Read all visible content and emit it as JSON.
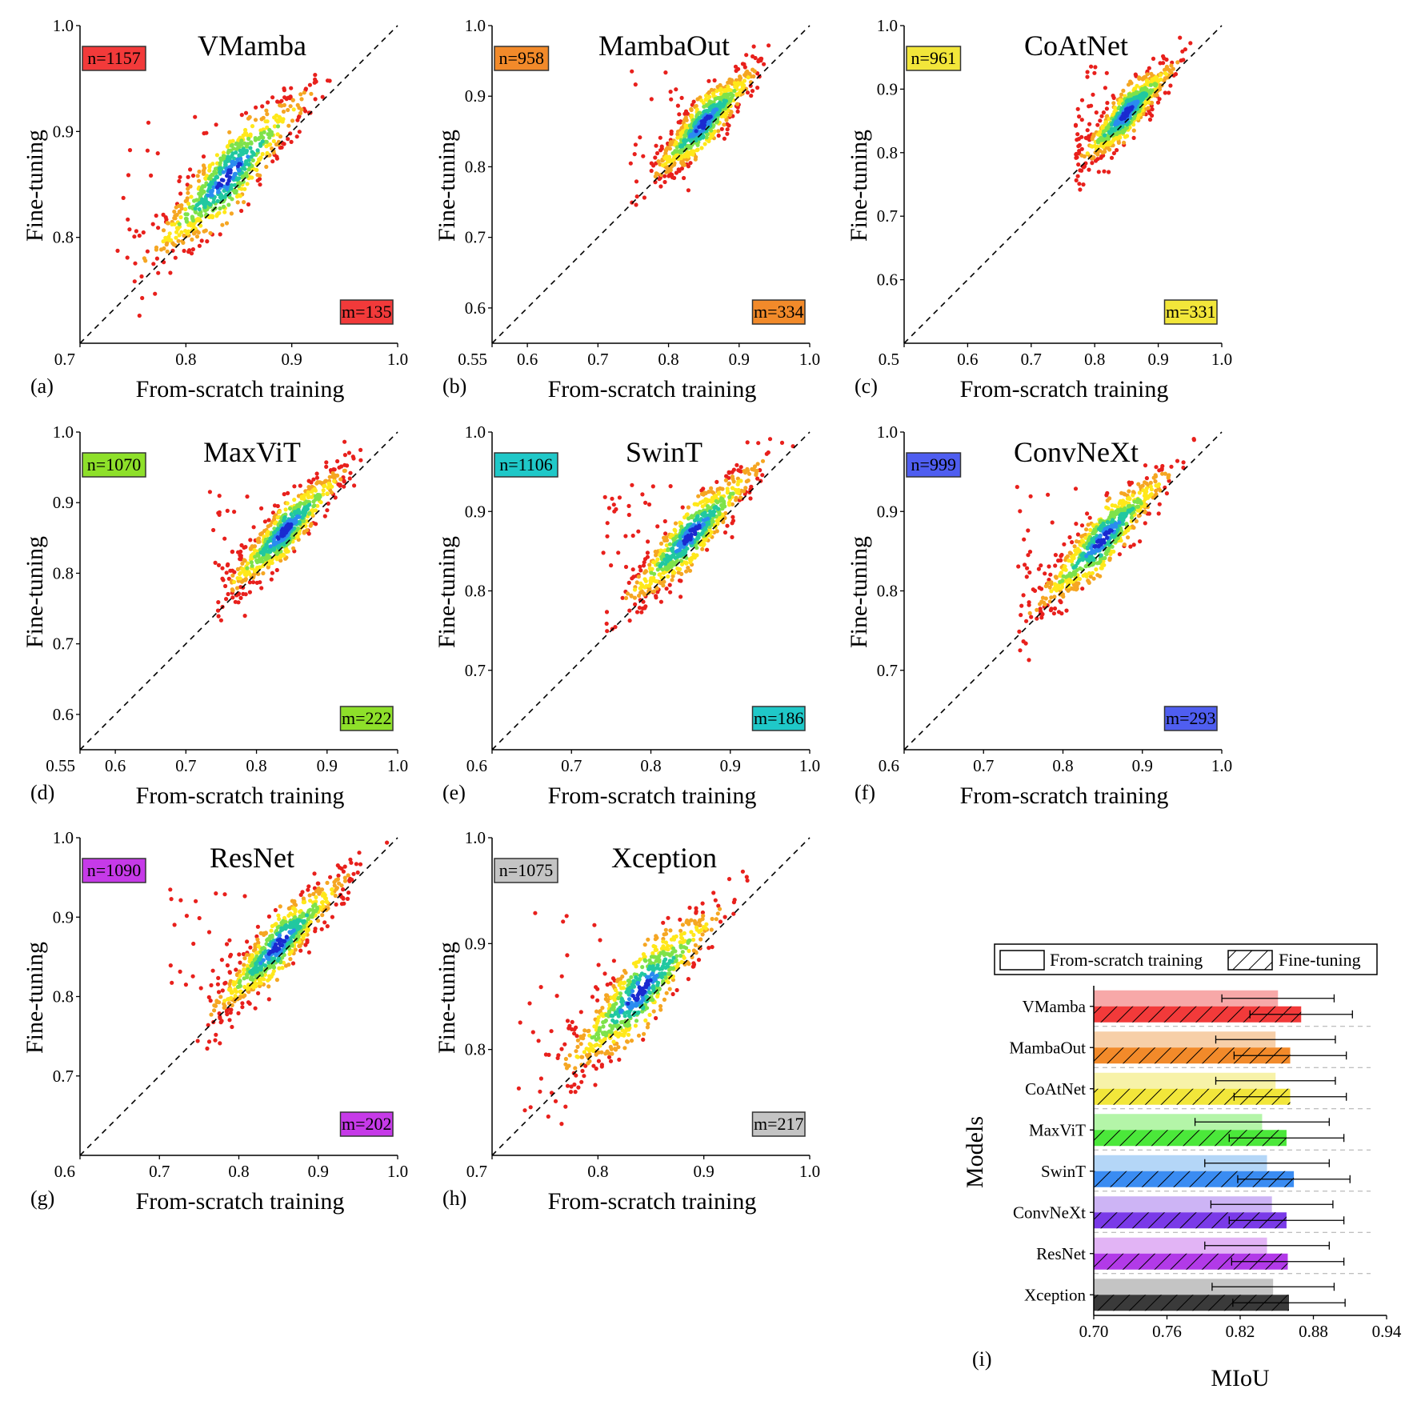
{
  "figure": {
    "scatter_panels": [
      {
        "letter": "(a)",
        "title": "VMamba",
        "n_label": "n=1157",
        "m_label": "m=135",
        "color": "#f23a3a",
        "range": [
          0.7,
          1.0
        ],
        "x_ticks": [
          "0.7",
          "0.8",
          "0.9",
          "1.0"
        ],
        "y_ticks": [
          "0.8",
          "0.9",
          "1.0"
        ],
        "xlabel": "From-scratch training",
        "ylabel": "Fine-tuning"
      },
      {
        "letter": "(b)",
        "title": "MambaOut",
        "n_label": "n=958",
        "m_label": "m=334",
        "color": "#f28a2a",
        "range": [
          0.55,
          1.0
        ],
        "x_ticks": [
          "0.55",
          "0.6",
          "0.7",
          "0.8",
          "0.9",
          "1.0"
        ],
        "y_ticks": [
          "0.6",
          "0.7",
          "0.8",
          "0.9",
          "1.0"
        ],
        "xlabel": "From-scratch training",
        "ylabel": "Fine-tuning"
      },
      {
        "letter": "(c)",
        "title": "CoAtNet",
        "n_label": "n=961",
        "m_label": "m=331",
        "color": "#f2e63a",
        "range": [
          0.5,
          1.0
        ],
        "x_ticks": [
          "0.5",
          "0.6",
          "0.7",
          "0.8",
          "0.9",
          "1.0"
        ],
        "y_ticks": [
          "0.6",
          "0.7",
          "0.8",
          "0.9",
          "1.0"
        ],
        "xlabel": "From-scratch training",
        "ylabel": "Fine-tuning"
      },
      {
        "letter": "(d)",
        "title": "MaxViT",
        "n_label": "n=1070",
        "m_label": "m=222",
        "color": "#8ee02a",
        "range": [
          0.55,
          1.0
        ],
        "x_ticks": [
          "0.55",
          "0.6",
          "0.7",
          "0.8",
          "0.9",
          "1.0"
        ],
        "y_ticks": [
          "0.6",
          "0.7",
          "0.8",
          "0.9",
          "1.0"
        ],
        "xlabel": "From-scratch training",
        "ylabel": "Fine-tuning"
      },
      {
        "letter": "(e)",
        "title": "SwinT",
        "n_label": "n=1106",
        "m_label": "m=186",
        "color": "#1fc8c8",
        "range": [
          0.6,
          1.0
        ],
        "x_ticks": [
          "0.6",
          "0.7",
          "0.8",
          "0.9",
          "1.0"
        ],
        "y_ticks": [
          "0.7",
          "0.8",
          "0.9",
          "1.0"
        ],
        "xlabel": "From-scratch training",
        "ylabel": "Fine-tuning"
      },
      {
        "letter": "(f)",
        "title": "ConvNeXt",
        "n_label": "n=999",
        "m_label": "m=293",
        "color": "#4f5ef0",
        "range": [
          0.6,
          1.0
        ],
        "x_ticks": [
          "0.6",
          "0.7",
          "0.8",
          "0.9",
          "1.0"
        ],
        "y_ticks": [
          "0.7",
          "0.8",
          "0.9",
          "1.0"
        ],
        "xlabel": "From-scratch training",
        "ylabel": "Fine-tuning"
      },
      {
        "letter": "(g)",
        "title": "ResNet",
        "n_label": "n=1090",
        "m_label": "m=202",
        "color": "#c63ae8",
        "range": [
          0.6,
          1.0
        ],
        "x_ticks": [
          "0.6",
          "0.7",
          "0.8",
          "0.9",
          "1.0"
        ],
        "y_ticks": [
          "0.7",
          "0.8",
          "0.9",
          "1.0"
        ],
        "xlabel": "From-scratch training",
        "ylabel": "Fine-tuning"
      },
      {
        "letter": "(h)",
        "title": "Xception",
        "n_label": "n=1075",
        "m_label": "m=217",
        "color": "#c4c4c4",
        "range": [
          0.7,
          1.0
        ],
        "x_ticks": [
          "0.7",
          "0.8",
          "0.9",
          "1.0"
        ],
        "y_ticks": [
          "0.8",
          "0.9",
          "1.0"
        ],
        "xlabel": "From-scratch training",
        "ylabel": "Fine-tuning"
      }
    ],
    "bar_panel": {
      "letter": "(i)",
      "xlabel": "MIoU",
      "ylabel": "Models",
      "legend": {
        "scratch": "From-scratch training",
        "finetune": "Fine-tuning"
      }
    }
  },
  "chart_data": [
    {
      "type": "scatter",
      "title": "VMamba",
      "xlabel": "From-scratch training",
      "ylabel": "Fine-tuning",
      "xlim": [
        0.7,
        1.0
      ],
      "ylim": [
        0.7,
        1.0
      ],
      "n": 1157,
      "m": 135,
      "center": 0.84,
      "spread": 0.035,
      "offset": 0.018,
      "x_min": 0.73
    },
    {
      "type": "scatter",
      "title": "MambaOut",
      "xlabel": "From-scratch training",
      "ylabel": "Fine-tuning",
      "xlim": [
        0.55,
        1.0
      ],
      "ylim": [
        0.55,
        1.0
      ],
      "n": 958,
      "m": 334,
      "center": 0.85,
      "spread": 0.035,
      "offset": 0.012,
      "x_min": 0.74
    },
    {
      "type": "scatter",
      "title": "CoAtNet",
      "xlabel": "From-scratch training",
      "ylabel": "Fine-tuning",
      "xlim": [
        0.5,
        1.0
      ],
      "ylim": [
        0.5,
        1.0
      ],
      "n": 961,
      "m": 331,
      "center": 0.85,
      "spread": 0.035,
      "offset": 0.012,
      "x_min": 0.77
    },
    {
      "type": "scatter",
      "title": "MaxViT",
      "xlabel": "From-scratch training",
      "ylabel": "Fine-tuning",
      "xlim": [
        0.55,
        1.0
      ],
      "ylim": [
        0.55,
        1.0
      ],
      "n": 1070,
      "m": 222,
      "center": 0.84,
      "spread": 0.04,
      "offset": 0.02,
      "x_min": 0.73
    },
    {
      "type": "scatter",
      "title": "SwinT",
      "xlabel": "From-scratch training",
      "ylabel": "Fine-tuning",
      "xlim": [
        0.6,
        1.0
      ],
      "ylim": [
        0.6,
        1.0
      ],
      "n": 1106,
      "m": 186,
      "center": 0.85,
      "spread": 0.04,
      "offset": 0.02,
      "x_min": 0.74
    },
    {
      "type": "scatter",
      "title": "ConvNeXt",
      "xlabel": "From-scratch training",
      "ylabel": "Fine-tuning",
      "xlim": [
        0.6,
        1.0
      ],
      "ylim": [
        0.6,
        1.0
      ],
      "n": 999,
      "m": 293,
      "center": 0.85,
      "spread": 0.04,
      "offset": 0.015,
      "x_min": 0.74
    },
    {
      "type": "scatter",
      "title": "ResNet",
      "xlabel": "From-scratch training",
      "ylabel": "Fine-tuning",
      "xlim": [
        0.6,
        1.0
      ],
      "ylim": [
        0.6,
        1.0
      ],
      "n": 1090,
      "m": 202,
      "center": 0.85,
      "spread": 0.04,
      "offset": 0.015,
      "x_min": 0.71
    },
    {
      "type": "scatter",
      "title": "Xception",
      "xlabel": "From-scratch training",
      "ylabel": "Fine-tuning",
      "xlim": [
        0.7,
        1.0
      ],
      "ylim": [
        0.7,
        1.0
      ],
      "n": 1075,
      "m": 217,
      "center": 0.84,
      "spread": 0.035,
      "offset": 0.015,
      "x_min": 0.72
    },
    {
      "type": "bar",
      "orientation": "horizontal",
      "xlabel": "MIoU",
      "ylabel": "Models",
      "xlim": [
        0.7,
        0.94
      ],
      "x_ticks": [
        "0.70",
        "0.76",
        "0.82",
        "0.88",
        "0.94"
      ],
      "categories": [
        "VMamba",
        "MambaOut",
        "CoAtNet",
        "MaxViT",
        "SwinT",
        "ConvNeXt",
        "ResNet",
        "Xception"
      ],
      "colors": [
        "#f23a3a",
        "#f28a2a",
        "#f2e63a",
        "#4be83a",
        "#3a8cf2",
        "#7a3ae8",
        "#b23ae8",
        "#3a3a3a"
      ],
      "scratch_colors": [
        "#f7a8a8",
        "#f7cfa8",
        "#f7f2a8",
        "#b4f5a8",
        "#b4d6f7",
        "#cdb4f5",
        "#e2b4f5",
        "#c4c4c4"
      ],
      "series": [
        {
          "name": "From-scratch training",
          "values": [
            0.851,
            0.849,
            0.849,
            0.838,
            0.842,
            0.846,
            0.842,
            0.847
          ],
          "errors": [
            0.046,
            0.049,
            0.049,
            0.055,
            0.051,
            0.05,
            0.051,
            0.05
          ]
        },
        {
          "name": "Fine-tuning",
          "values": [
            0.87,
            0.861,
            0.861,
            0.858,
            0.864,
            0.858,
            0.859,
            0.86
          ],
          "errors": [
            0.042,
            0.046,
            0.046,
            0.047,
            0.046,
            0.047,
            0.046,
            0.046
          ]
        }
      ]
    }
  ]
}
